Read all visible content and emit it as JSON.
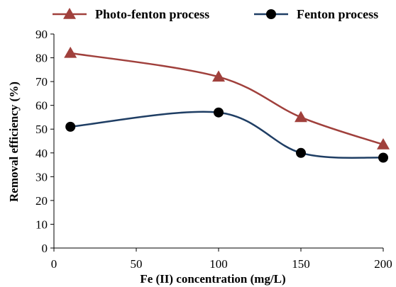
{
  "chart_data": {
    "type": "line",
    "title": "",
    "xlabel": "Fe (II) concentration (mg/L)",
    "ylabel": "Removal efficiency (%)",
    "xlim": [
      0,
      200
    ],
    "ylim": [
      0,
      90
    ],
    "x_ticks": [
      0,
      50,
      100,
      150,
      200
    ],
    "y_ticks": [
      0,
      10,
      20,
      30,
      40,
      50,
      60,
      70,
      80,
      90
    ],
    "grid": false,
    "smooth": true,
    "legend_position": "top",
    "series": [
      {
        "name": "Photo-fenton process",
        "color": "#A0403C",
        "marker": "triangle",
        "x": [
          10,
          100,
          150,
          200
        ],
        "y": [
          82,
          72,
          55,
          43.5
        ]
      },
      {
        "name": "Fenton process",
        "color": "#1F3E64",
        "marker": "circle",
        "x": [
          10,
          100,
          150,
          200
        ],
        "y": [
          51,
          57,
          40,
          38
        ]
      }
    ]
  }
}
